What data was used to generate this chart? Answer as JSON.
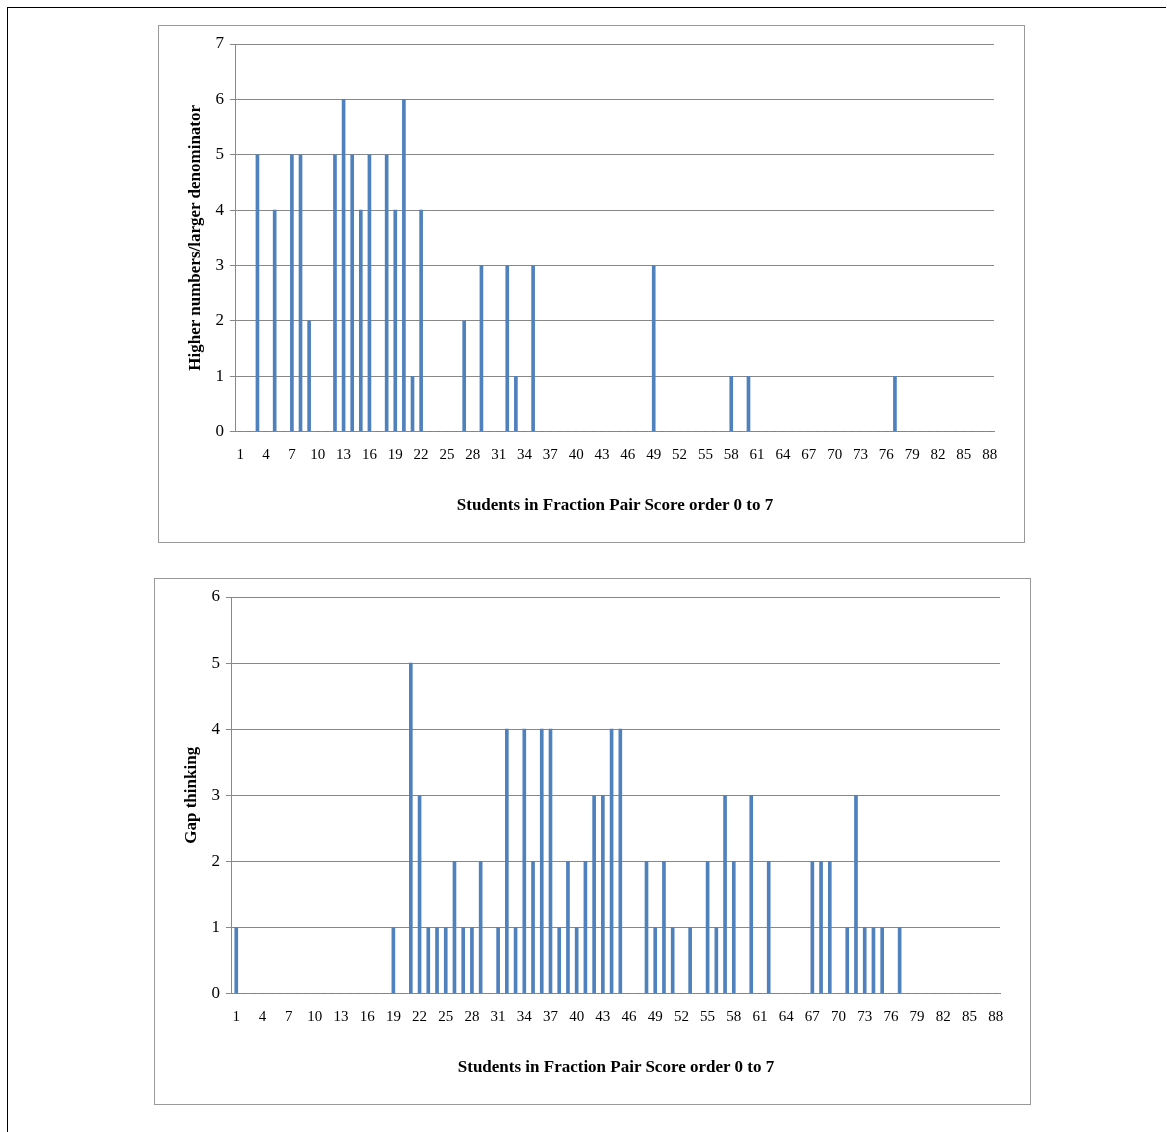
{
  "chart_data": [
    {
      "type": "bar",
      "xlabel": "Students in Fraction Pair Score order 0 to 7",
      "ylabel": "Higher numbers/larger denominator",
      "color": "#4f81bd",
      "ylim": [
        0,
        7
      ],
      "yticks": [
        0,
        1,
        2,
        3,
        4,
        5,
        6,
        7
      ],
      "grid": "y",
      "categories": [
        "1",
        null,
        null,
        "4",
        null,
        null,
        "7",
        null,
        null,
        "10",
        null,
        null,
        "13",
        null,
        null,
        "16",
        null,
        null,
        "19",
        null,
        null,
        "22",
        null,
        null,
        "25",
        null,
        null,
        "28",
        null,
        null,
        "31",
        null,
        null,
        "34",
        null,
        null,
        "37",
        null,
        null,
        "40",
        null,
        null,
        "43",
        null,
        null,
        "46",
        null,
        null,
        "49",
        null,
        null,
        "52",
        null,
        null,
        "55",
        null,
        null,
        "58",
        null,
        null,
        "61",
        null,
        null,
        "64",
        null,
        null,
        "67",
        null,
        null,
        "70",
        null,
        null,
        "73",
        null,
        null,
        "76",
        null,
        null,
        "79",
        null,
        null,
        "82",
        null,
        null,
        "85",
        null,
        null,
        "88"
      ],
      "values": [
        0,
        0,
        5,
        0,
        4,
        0,
        5,
        5,
        2,
        0,
        0,
        5,
        6,
        5,
        4,
        5,
        0,
        5,
        4,
        6,
        1,
        4,
        0,
        0,
        0,
        0,
        2,
        0,
        3,
        0,
        0,
        3,
        1,
        0,
        3,
        0,
        0,
        0,
        0,
        0,
        0,
        0,
        0,
        0,
        0,
        0,
        0,
        0,
        3,
        0,
        0,
        0,
        0,
        0,
        0,
        0,
        0,
        1,
        0,
        1,
        0,
        0,
        0,
        0,
        0,
        0,
        0,
        0,
        0,
        0,
        0,
        0,
        0,
        0,
        0,
        0,
        1,
        0,
        0,
        0,
        0,
        0,
        0,
        0,
        0,
        0,
        0,
        0
      ]
    },
    {
      "type": "bar",
      "xlabel": "Students in Fraction Pair Score order 0 to 7",
      "ylabel": "Gap thinking",
      "color": "#4f81bd",
      "ylim": [
        0,
        6
      ],
      "yticks": [
        0,
        1,
        2,
        3,
        4,
        5,
        6
      ],
      "grid": "y",
      "categories": [
        "1",
        null,
        null,
        "4",
        null,
        null,
        "7",
        null,
        null,
        "10",
        null,
        null,
        "13",
        null,
        null,
        "16",
        null,
        null,
        "19",
        null,
        null,
        "22",
        null,
        null,
        "25",
        null,
        null,
        "28",
        null,
        null,
        "31",
        null,
        null,
        "34",
        null,
        null,
        "37",
        null,
        null,
        "40",
        null,
        null,
        "43",
        null,
        null,
        "46",
        null,
        null,
        "49",
        null,
        null,
        "52",
        null,
        null,
        "55",
        null,
        null,
        "58",
        null,
        null,
        "61",
        null,
        null,
        "64",
        null,
        null,
        "67",
        null,
        null,
        "70",
        null,
        null,
        "73",
        null,
        null,
        "76",
        null,
        null,
        "79",
        null,
        null,
        "82",
        null,
        null,
        "85",
        null,
        null,
        "88"
      ],
      "values": [
        1,
        0,
        0,
        0,
        0,
        0,
        0,
        0,
        0,
        0,
        0,
        0,
        0,
        0,
        0,
        0,
        0,
        0,
        1,
        0,
        5,
        3,
        1,
        1,
        1,
        2,
        1,
        1,
        2,
        0,
        1,
        4,
        1,
        4,
        2,
        4,
        4,
        1,
        2,
        1,
        2,
        3,
        3,
        4,
        4,
        0,
        0,
        2,
        1,
        2,
        1,
        0,
        1,
        0,
        2,
        1,
        3,
        2,
        0,
        3,
        0,
        2,
        0,
        0,
        0,
        0,
        2,
        2,
        2,
        0,
        1,
        3,
        1,
        1,
        1,
        0,
        1,
        0,
        0,
        0,
        0,
        0,
        0,
        0,
        0,
        0,
        0,
        0
      ]
    }
  ]
}
